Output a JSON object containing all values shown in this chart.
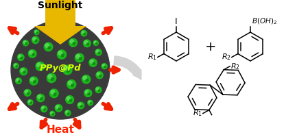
{
  "sunlight_text": "Sunlight",
  "heat_text": "Heat",
  "ppypd_text": "PPy@Pd",
  "plus_text": "+",
  "sunlight_color": "#e8b800",
  "sunlight_text_color": "#000000",
  "heat_text_color": "#ff2200",
  "ppypd_text_color": "#ccff00",
  "heat_arrow_color": "#ee2200",
  "sphere_dark": "#3a3a3a",
  "sphere_green": "#1ab81a",
  "sphere_green_light": "#5edd5e",
  "bg_color": "#ffffff",
  "gray_arrow_color": "#aaaaaa",
  "gray_arrow_fill": "#cccccc"
}
